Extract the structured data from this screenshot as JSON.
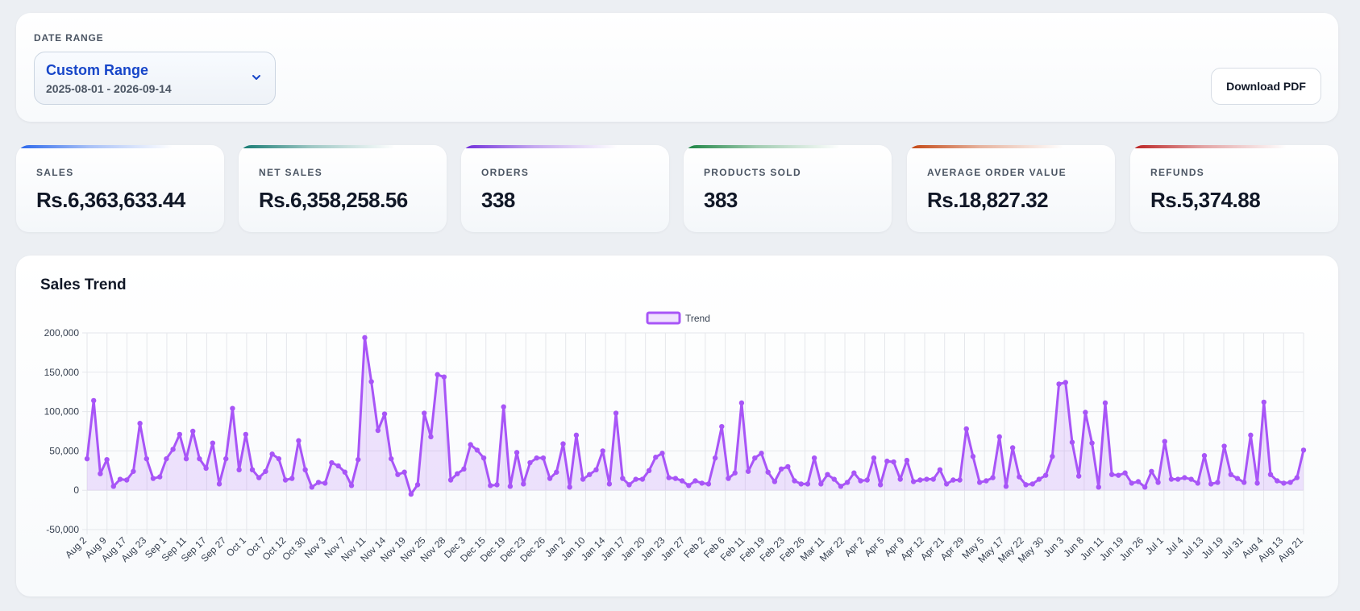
{
  "filters": {
    "date_range_label": "DATE RANGE",
    "selected_range": "Custom Range",
    "selected_dates": "2025-08-01 - 2026-09-14",
    "download_label": "Download PDF"
  },
  "kpis": [
    {
      "label": "SALES",
      "value": "Rs.6,363,633.44",
      "accent": "#2563eb"
    },
    {
      "label": "NET SALES",
      "value": "Rs.6,358,258.56",
      "accent": "#0f766e"
    },
    {
      "label": "ORDERS",
      "value": "338",
      "accent": "#6d28d9"
    },
    {
      "label": "PRODUCTS SOLD",
      "value": "383",
      "accent": "#15803d"
    },
    {
      "label": "AVERAGE ORDER VALUE",
      "value": "Rs.18,827.32",
      "accent": "#c2410c"
    },
    {
      "label": "REFUNDS",
      "value": "Rs.5,374.88",
      "accent": "#b91c1c"
    }
  ],
  "chart_section": {
    "title": "Sales Trend"
  },
  "colors": {
    "line": "#a855f7",
    "fill": "rgba(168, 85, 247, 0.16)",
    "grid": "#e5e7eb",
    "axis_text": "#374151"
  },
  "chart_data": {
    "type": "line",
    "legend": [
      "Trend"
    ],
    "legend_position": "top-center",
    "grid": true,
    "ylim": [
      -50000,
      200000
    ],
    "y_ticks": [
      200000,
      150000,
      100000,
      50000,
      0,
      -50000
    ],
    "y_tick_labels": [
      "200,000",
      "150,000",
      "100,000",
      "50,000",
      "0",
      "-50,000"
    ],
    "x_tick_labels": [
      "Aug 2",
      "Aug 9",
      "Aug 17",
      "Aug 23",
      "Sep 1",
      "Sep 11",
      "Sep 17",
      "Sep 27",
      "Oct 1",
      "Oct 7",
      "Oct 12",
      "Oct 30",
      "Nov 3",
      "Nov 7",
      "Nov 11",
      "Nov 14",
      "Nov 19",
      "Nov 25",
      "Nov 28",
      "Dec 3",
      "Dec 15",
      "Dec 19",
      "Dec 23",
      "Dec 26",
      "Jan 2",
      "Jan 10",
      "Jan 14",
      "Jan 17",
      "Jan 20",
      "Jan 23",
      "Jan 27",
      "Feb 2",
      "Feb 6",
      "Feb 11",
      "Feb 19",
      "Feb 23",
      "Feb 26",
      "Mar 11",
      "Mar 22",
      "Apr 2",
      "Apr 5",
      "Apr 9",
      "Apr 12",
      "Apr 21",
      "Apr 29",
      "May 5",
      "May 17",
      "May 22",
      "May 30",
      "Jun 3",
      "Jun 8",
      "Jun 11",
      "Jun 19",
      "Jun 26",
      "Jul 1",
      "Jul 4",
      "Jul 13",
      "Jul 19",
      "Jul 31",
      "Aug 4",
      "Aug 13",
      "Aug 21"
    ],
    "series": [
      {
        "name": "Trend",
        "values": [
          40000,
          114000,
          21000,
          39000,
          5000,
          14000,
          13000,
          24000,
          85000,
          40000,
          15000,
          17000,
          40000,
          52000,
          71000,
          40000,
          75000,
          40000,
          28000,
          60000,
          8000,
          40000,
          104000,
          26000,
          71000,
          26000,
          16000,
          24000,
          46000,
          40000,
          13000,
          15000,
          63000,
          26000,
          4000,
          10000,
          9000,
          35000,
          31000,
          23000,
          6000,
          39000,
          194000,
          138000,
          76000,
          97000,
          40000,
          20000,
          23000,
          -5000,
          7000,
          98000,
          68000,
          147000,
          144000,
          13000,
          21000,
          27000,
          58000,
          51000,
          41000,
          6000,
          7000,
          106000,
          5000,
          48000,
          8000,
          35000,
          41000,
          41000,
          15000,
          23000,
          59000,
          4000,
          70000,
          14000,
          20000,
          26000,
          50000,
          8000,
          98000,
          15000,
          7000,
          14000,
          14000,
          25000,
          42000,
          47000,
          16000,
          15000,
          12000,
          6000,
          12000,
          9000,
          8000,
          41000,
          81000,
          15000,
          22000,
          111000,
          24000,
          41000,
          47000,
          23000,
          11000,
          27000,
          30000,
          12000,
          8000,
          8000,
          41000,
          8000,
          20000,
          14000,
          5000,
          10000,
          22000,
          12000,
          13000,
          41000,
          7000,
          37000,
          36000,
          14000,
          38000,
          11000,
          13000,
          14000,
          14000,
          26000,
          8000,
          13000,
          13000,
          78000,
          43000,
          10000,
          12000,
          16000,
          68000,
          5000,
          54000,
          17000,
          7000,
          8000,
          14000,
          19000,
          43000,
          135000,
          137000,
          61000,
          18000,
          99000,
          60000,
          4000,
          111000,
          20000,
          19000,
          22000,
          9000,
          11000,
          4000,
          24000,
          10000,
          62000,
          14000,
          14000,
          16000,
          14000,
          9000,
          44000,
          8000,
          10000,
          56000,
          20000,
          15000,
          10000,
          70000,
          9000,
          112000,
          20000,
          12000,
          9000,
          10000,
          16000,
          51000
        ]
      }
    ]
  }
}
